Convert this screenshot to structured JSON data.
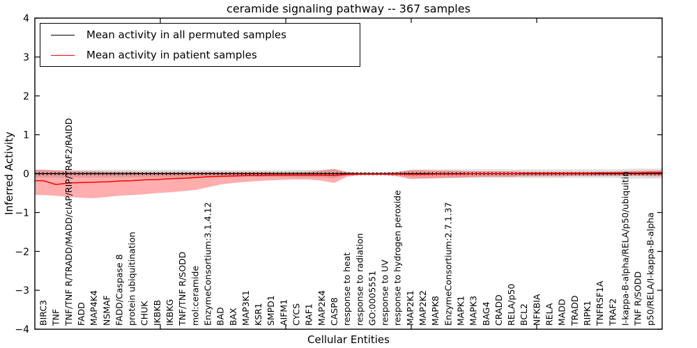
{
  "chart_data": {
    "type": "line",
    "title": "ceramide signaling pathway -- 367 samples",
    "xlabel": "Cellular Entities",
    "ylabel": "Inferred Activity",
    "ylim": [
      -4,
      4
    ],
    "yticks": [
      4,
      3,
      2,
      1,
      0,
      -1,
      -2,
      -3,
      -4
    ],
    "ytick_labels": [
      "4",
      "3",
      "2",
      "1",
      "0",
      "−1",
      "−2",
      "−3",
      "−4"
    ],
    "grid": false,
    "legend_position": "upper left",
    "categories": [
      "BIRC3",
      "TNF",
      "TNF/TNF R/TRADD/MADD/cIAP/RIP/TRAF2/RAIDD",
      "FADD",
      "MAP4K4",
      "NSMAF",
      "FADD/Caspase 8",
      "protein ubiquitination",
      "CHUK",
      "IKBKB",
      "IKBKG",
      "TNF/TNF R/SODD",
      "mol:ceramide",
      "EnzymeConsortium:3.1.4.12",
      "BAD",
      "BAX",
      "MAP3K1",
      "KSR1",
      "SMPD1",
      "AIFM1",
      "CYCS",
      "RAF1",
      "MAP2K4",
      "CASP8",
      "response to heat",
      "response to radiation",
      "GO:0005551",
      "response to UV",
      "response to hydrogen peroxide",
      "MAP2K1",
      "MAP2K2",
      "MAPK8",
      "EnzymeConsortium:2.7.1.37",
      "MAPK1",
      "MAPK3",
      "BAG4",
      "CRADD",
      "RELA/p50",
      "BCL2",
      "NFKBIA",
      "RELA",
      "MADD",
      "TRADD",
      "RIPK1",
      "TNFRSF1A",
      "TRAF2",
      "I-kappa-B-alpha/RELA/p50/ubiquitin",
      "TNF R/SODD",
      "p50/RELA/I-kappa-B-alpha"
    ],
    "series": [
      {
        "name": "Mean activity in all permuted samples",
        "color": "#000000",
        "band_color": "rgba(0,0,0,0.12)",
        "markers": true,
        "values": [
          0,
          0,
          0,
          0,
          0,
          0,
          0,
          0,
          0,
          0,
          0,
          0,
          0,
          0,
          0,
          0,
          0,
          0,
          0,
          0,
          0,
          0,
          0,
          0,
          0,
          0,
          0,
          0,
          0,
          0,
          0,
          0,
          0,
          0,
          0,
          0,
          0,
          0,
          0,
          0,
          0,
          0,
          0,
          0,
          0,
          0,
          0,
          0,
          0
        ],
        "band_upper": [
          0.1,
          0.1,
          0.1,
          0.1,
          0.1,
          0.1,
          0.1,
          0.1,
          0.1,
          0.1,
          0.1,
          0.1,
          0.09,
          0.09,
          0.09,
          0.09,
          0.09,
          0.09,
          0.09,
          0.09,
          0.1,
          0.1,
          0.1,
          0.12,
          0.05,
          0.03,
          0.03,
          0.03,
          0.05,
          0.1,
          0.11,
          0.11,
          0.11,
          0.11,
          0.11,
          0.11,
          0.11,
          0.11,
          0.11,
          0.11,
          0.11,
          0.11,
          0.11,
          0.11,
          0.11,
          0.11,
          0.12,
          0.13,
          0.13
        ],
        "band_lower": [
          -0.1,
          -0.1,
          -0.1,
          -0.1,
          -0.1,
          -0.1,
          -0.1,
          -0.1,
          -0.1,
          -0.1,
          -0.1,
          -0.1,
          -0.09,
          -0.09,
          -0.09,
          -0.09,
          -0.09,
          -0.09,
          -0.09,
          -0.09,
          -0.1,
          -0.1,
          -0.1,
          -0.12,
          -0.05,
          -0.03,
          -0.03,
          -0.03,
          -0.05,
          -0.1,
          -0.11,
          -0.11,
          -0.11,
          -0.11,
          -0.11,
          -0.11,
          -0.11,
          -0.11,
          -0.11,
          -0.11,
          -0.11,
          -0.11,
          -0.11,
          -0.11,
          -0.11,
          -0.11,
          -0.12,
          -0.13,
          -0.13
        ]
      },
      {
        "name": "Mean activity in patient samples",
        "color": "#ff0000",
        "band_color": "rgba(255,0,0,0.32)",
        "markers": false,
        "values": [
          -0.18,
          -0.28,
          -0.24,
          -0.23,
          -0.22,
          -0.21,
          -0.19,
          -0.18,
          -0.16,
          -0.15,
          -0.13,
          -0.12,
          -0.1,
          -0.08,
          -0.07,
          -0.06,
          -0.05,
          -0.05,
          -0.04,
          -0.04,
          -0.04,
          -0.04,
          -0.04,
          -0.05,
          -0.02,
          -0.01,
          -0.01,
          -0.01,
          -0.01,
          -0.02,
          -0.02,
          -0.01,
          -0.01,
          -0.01,
          0.0,
          0.0,
          0.0,
          0.0,
          0.01,
          0.01,
          0.01,
          0.01,
          0.01,
          0.01,
          0.02,
          0.02,
          0.02,
          0.02,
          0.03
        ],
        "band_upper": [
          0.1,
          0.08,
          0.07,
          0.06,
          0.06,
          0.05,
          0.05,
          0.05,
          0.04,
          0.04,
          0.04,
          0.04,
          0.04,
          0.04,
          0.04,
          0.04,
          0.04,
          0.04,
          0.04,
          0.04,
          0.04,
          0.05,
          0.08,
          0.12,
          0.04,
          0.02,
          0.02,
          0.02,
          0.04,
          0.09,
          0.09,
          0.08,
          0.08,
          0.07,
          0.06,
          0.06,
          0.06,
          0.06,
          0.05,
          0.05,
          0.05,
          0.05,
          0.05,
          0.05,
          0.05,
          0.05,
          0.06,
          0.07,
          0.08
        ],
        "band_lower": [
          -0.55,
          -0.57,
          -0.6,
          -0.62,
          -0.63,
          -0.6,
          -0.57,
          -0.55,
          -0.53,
          -0.5,
          -0.48,
          -0.45,
          -0.42,
          -0.35,
          -0.28,
          -0.24,
          -0.21,
          -0.19,
          -0.17,
          -0.16,
          -0.15,
          -0.15,
          -0.18,
          -0.24,
          -0.08,
          -0.04,
          -0.04,
          -0.04,
          -0.07,
          -0.14,
          -0.13,
          -0.12,
          -0.11,
          -0.1,
          -0.09,
          -0.08,
          -0.08,
          -0.08,
          -0.07,
          -0.07,
          -0.07,
          -0.07,
          -0.06,
          -0.06,
          -0.06,
          -0.06,
          -0.06,
          -0.06,
          -0.07
        ]
      }
    ]
  }
}
